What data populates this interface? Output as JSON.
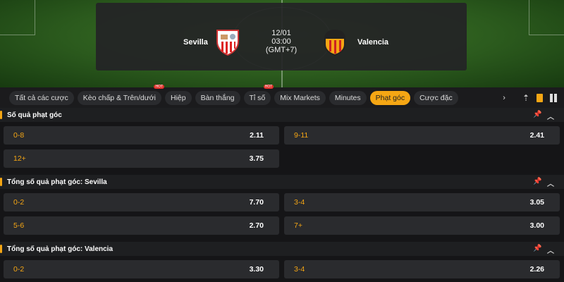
{
  "match": {
    "home": "Sevilla",
    "away": "Valencia",
    "date": "12/01",
    "time": "03:00",
    "tz": "(GMT+7)"
  },
  "tabs": [
    {
      "label": "Tất cả các cược"
    },
    {
      "label": "Kèo chấp & Trên/dưới",
      "hot": "HOT"
    },
    {
      "label": "Hiệp"
    },
    {
      "label": "Bàn thắng"
    },
    {
      "label": "Tỉ số",
      "hot": "HOT"
    },
    {
      "label": "Mix Markets"
    },
    {
      "label": "Minutes"
    },
    {
      "label": "Phạt góc",
      "active": true
    },
    {
      "label": "Cược đặc"
    }
  ],
  "accent": "#f5a614",
  "sections": [
    {
      "title": "Số quả phạt góc",
      "rows": [
        [
          {
            "label": "0-8",
            "odds": "2.11"
          },
          {
            "label": "9-11",
            "odds": "2.41"
          }
        ],
        [
          {
            "label": "12+",
            "odds": "3.75"
          }
        ]
      ]
    },
    {
      "title": "Tổng số quả phạt góc: Sevilla",
      "rows": [
        [
          {
            "label": "0-2",
            "odds": "7.70"
          },
          {
            "label": "3-4",
            "odds": "3.05"
          }
        ],
        [
          {
            "label": "5-6",
            "odds": "2.70"
          },
          {
            "label": "7+",
            "odds": "3.00"
          }
        ]
      ]
    },
    {
      "title": "Tổng số quả phạt góc: Valencia",
      "rows": [
        [
          {
            "label": "0-2",
            "odds": "3.30"
          },
          {
            "label": "3-4",
            "odds": "2.26"
          }
        ]
      ]
    }
  ]
}
